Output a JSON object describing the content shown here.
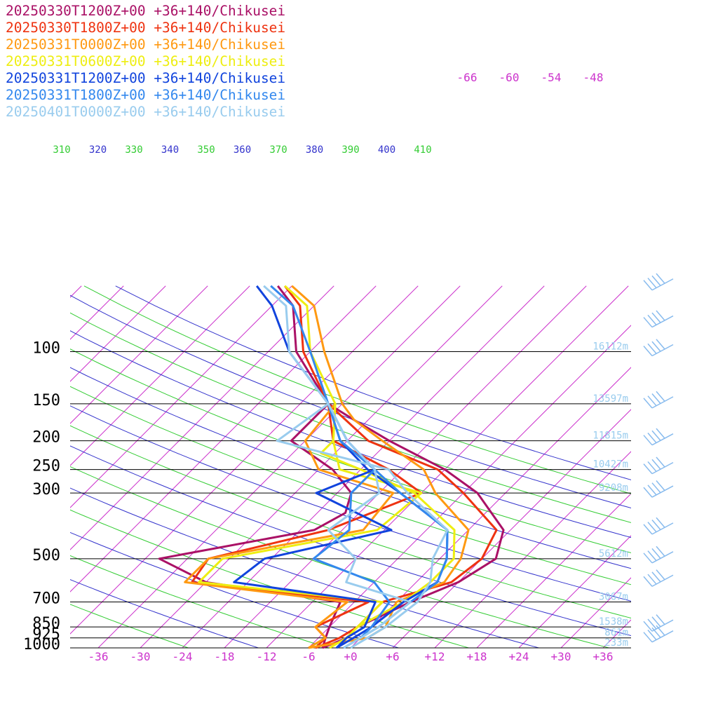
{
  "chart_data": {
    "type": "skew-t log-p sounding",
    "y_axis": {
      "unit": "hPa",
      "scale": "log",
      "levels": [
        100,
        150,
        200,
        250,
        300,
        500,
        700,
        850,
        925,
        1000
      ],
      "tick_labels": [
        "100",
        "150",
        "200",
        "250",
        "300",
        "500",
        "700",
        "850",
        "925",
        "1000"
      ]
    },
    "x_axis": {
      "unit": "°C",
      "range": [
        -40,
        40
      ],
      "ticks": [
        -36,
        -30,
        -24,
        -18,
        -12,
        -6,
        0,
        6,
        12,
        18,
        24,
        30,
        36
      ],
      "tick_labels": [
        "-36",
        "-30",
        "-24",
        "-18",
        "-12",
        "-6",
        "+0",
        "+6",
        "+12",
        "+18",
        "+24",
        "+30",
        "+36"
      ],
      "upper_tick_labels": [
        "-66",
        "-60",
        "-54",
        "-48"
      ]
    },
    "height_labels": [
      {
        "p": 100,
        "text": "16112m"
      },
      {
        "p": 150,
        "text": "13597m"
      },
      {
        "p": 200,
        "text": "11815m"
      },
      {
        "p": 250,
        "text": "10427m"
      },
      {
        "p": 300,
        "text": "9208m"
      },
      {
        "p": 500,
        "text": "5612m"
      },
      {
        "p": 700,
        "text": "3067m"
      },
      {
        "p": 850,
        "text": "1538m"
      },
      {
        "p": 925,
        "text": "861m"
      },
      {
        "p": 1000,
        "text": "233m"
      }
    ],
    "theta_labels": [
      "310",
      "320",
      "330",
      "340",
      "350",
      "360",
      "370",
      "380",
      "390",
      "400",
      "410"
    ],
    "colors": {
      "isotherm": "#cc33cc",
      "theta_blue": "#3333cc",
      "theta_green": "#33cc33",
      "isobar": "#000000",
      "height_label": "#99ccee",
      "wind_barb": "#88bbee"
    },
    "legend": [
      {
        "label": "20250330T1200Z+00 +36+140/Chikusei",
        "color": "#aa1166"
      },
      {
        "label": "20250330T1800Z+00 +36+140/Chikusei",
        "color": "#ee3311"
      },
      {
        "label": "20250331T0000Z+00 +36+140/Chikusei",
        "color": "#ff9911"
      },
      {
        "label": "20250331T0600Z+00 +36+140/Chikusei",
        "color": "#eeee11"
      },
      {
        "label": "20250331T1200Z+00 +36+140/Chikusei",
        "color": "#1144dd"
      },
      {
        "label": "20250331T1800Z+00 +36+140/Chikusei",
        "color": "#3388ee"
      },
      {
        "label": "20250401T0000Z+00 +36+140/Chikusei",
        "color": "#99ccee"
      }
    ],
    "series": [
      {
        "name": "20250330T1200Z+00",
        "color": "#aa1166",
        "temperature": [
          [
            1000,
            -4
          ],
          [
            925,
            -2
          ],
          [
            850,
            -2
          ],
          [
            700,
            2
          ],
          [
            600,
            6
          ],
          [
            500,
            8
          ],
          [
            400,
            5
          ],
          [
            300,
            -4
          ],
          [
            250,
            -12
          ],
          [
            200,
            -24
          ],
          [
            170,
            -32
          ],
          [
            150,
            -38
          ],
          [
            100,
            -50
          ],
          [
            70,
            -57
          ],
          [
            60,
            -62
          ]
        ],
        "dewpoint": [
          [
            1000,
            -4
          ],
          [
            925,
            -5
          ],
          [
            850,
            -6
          ],
          [
            700,
            -8
          ],
          [
            600,
            -30
          ],
          [
            500,
            -40
          ],
          [
            400,
            -22
          ],
          [
            350,
            -20
          ],
          [
            300,
            -22
          ],
          [
            250,
            -28
          ],
          [
            200,
            -38
          ],
          [
            150,
            -38
          ]
        ]
      },
      {
        "name": "20250330T1800Z+00",
        "color": "#ee3311",
        "temperature": [
          [
            1000,
            -5
          ],
          [
            925,
            -3
          ],
          [
            850,
            -2
          ],
          [
            700,
            -2
          ],
          [
            600,
            5
          ],
          [
            500,
            6
          ],
          [
            400,
            4
          ],
          [
            300,
            -6
          ],
          [
            250,
            -13
          ],
          [
            200,
            -27
          ],
          [
            150,
            -38
          ],
          [
            100,
            -49
          ],
          [
            70,
            -56
          ],
          [
            60,
            -61
          ]
        ],
        "dewpoint": [
          [
            1000,
            -5
          ],
          [
            925,
            -5
          ],
          [
            850,
            -8
          ],
          [
            700,
            -4
          ],
          [
            600,
            -32
          ],
          [
            500,
            -33
          ],
          [
            400,
            -20
          ],
          [
            300,
            -12
          ],
          [
            250,
            -20
          ],
          [
            200,
            -32
          ],
          [
            150,
            -38
          ]
        ]
      },
      {
        "name": "20250331T0000Z+00",
        "color": "#ff9911",
        "temperature": [
          [
            1000,
            -6
          ],
          [
            925,
            1
          ],
          [
            850,
            2
          ],
          [
            700,
            0
          ],
          [
            600,
            4
          ],
          [
            500,
            3
          ],
          [
            400,
            0
          ],
          [
            300,
            -10
          ],
          [
            250,
            -15
          ],
          [
            200,
            -25
          ],
          [
            170,
            -32
          ],
          [
            150,
            -36
          ],
          [
            100,
            -46
          ],
          [
            70,
            -54
          ],
          [
            60,
            -60
          ]
        ],
        "dewpoint": [
          [
            1000,
            -6
          ],
          [
            925,
            -5
          ],
          [
            850,
            -8
          ],
          [
            700,
            -7
          ],
          [
            600,
            -33
          ],
          [
            500,
            -33
          ],
          [
            400,
            -15
          ],
          [
            300,
            -16
          ],
          [
            250,
            -30
          ],
          [
            200,
            -36
          ],
          [
            150,
            -37
          ]
        ]
      },
      {
        "name": "20250331T0600Z+00",
        "color": "#eeee11",
        "temperature": [
          [
            1000,
            -3
          ],
          [
            925,
            -2
          ],
          [
            850,
            -2
          ],
          [
            700,
            1
          ],
          [
            600,
            2
          ],
          [
            500,
            2
          ],
          [
            400,
            -2
          ],
          [
            300,
            -13
          ],
          [
            250,
            -24
          ],
          [
            220,
            -32
          ],
          [
            200,
            -32
          ],
          [
            150,
            -37
          ],
          [
            100,
            -48
          ],
          [
            70,
            -55
          ],
          [
            60,
            -61
          ]
        ],
        "dewpoint": [
          [
            1000,
            -3
          ],
          [
            925,
            -2
          ],
          [
            850,
            -2
          ],
          [
            700,
            -2
          ],
          [
            600,
            -31
          ],
          [
            500,
            -31
          ],
          [
            400,
            -13
          ],
          [
            300,
            -12
          ],
          [
            250,
            -27
          ],
          [
            200,
            -32
          ],
          [
            150,
            -37
          ]
        ]
      },
      {
        "name": "20250331T1200Z+00",
        "color": "#1144dd",
        "temperature": [
          [
            1000,
            -2
          ],
          [
            925,
            -1
          ],
          [
            850,
            0
          ],
          [
            700,
            1
          ],
          [
            600,
            3
          ],
          [
            500,
            1
          ],
          [
            400,
            -3
          ],
          [
            300,
            -15
          ],
          [
            250,
            -23
          ],
          [
            200,
            -31
          ],
          [
            150,
            -38
          ],
          [
            100,
            -51
          ],
          [
            70,
            -60
          ],
          [
            60,
            -65
          ]
        ],
        "dewpoint": [
          [
            1000,
            -2
          ],
          [
            925,
            -2
          ],
          [
            850,
            -1
          ],
          [
            700,
            -3
          ],
          [
            600,
            -26
          ],
          [
            500,
            -25
          ],
          [
            400,
            -11
          ],
          [
            300,
            -27
          ],
          [
            250,
            -22
          ],
          [
            200,
            -30
          ],
          [
            150,
            -38
          ]
        ]
      },
      {
        "name": "20250331T1800Z+00",
        "color": "#3388ee",
        "temperature": [
          [
            1000,
            -1
          ],
          [
            925,
            0
          ],
          [
            850,
            1
          ],
          [
            700,
            2
          ],
          [
            600,
            3
          ],
          [
            500,
            1
          ],
          [
            400,
            -3
          ],
          [
            300,
            -15
          ],
          [
            250,
            -22
          ],
          [
            200,
            -31
          ],
          [
            150,
            -38
          ],
          [
            100,
            -48
          ],
          [
            70,
            -57
          ],
          [
            60,
            -63
          ]
        ],
        "dewpoint": [
          [
            1000,
            -1
          ],
          [
            925,
            0
          ],
          [
            850,
            0
          ],
          [
            700,
            -1
          ],
          [
            600,
            -6
          ],
          [
            500,
            -18
          ],
          [
            400,
            -17
          ],
          [
            300,
            -22
          ],
          [
            250,
            -22
          ],
          [
            200,
            -30
          ],
          [
            150,
            -38
          ]
        ]
      },
      {
        "name": "20250401T0000Z+00",
        "color": "#99ccee",
        "temperature": [
          [
            1000,
            0
          ],
          [
            925,
            1
          ],
          [
            850,
            2
          ],
          [
            700,
            3
          ],
          [
            600,
            2
          ],
          [
            500,
            -1
          ],
          [
            400,
            -3
          ],
          [
            300,
            -14
          ],
          [
            250,
            -20
          ],
          [
            200,
            -40
          ],
          [
            150,
            -38
          ],
          [
            100,
            -51
          ],
          [
            70,
            -58
          ],
          [
            60,
            -64
          ]
        ],
        "dewpoint": [
          [
            1000,
            -1
          ],
          [
            925,
            0
          ],
          [
            850,
            1
          ],
          [
            700,
            2
          ],
          [
            600,
            -10
          ],
          [
            500,
            -12
          ],
          [
            400,
            -20
          ],
          [
            300,
            -18
          ],
          [
            250,
            -22
          ],
          [
            200,
            -30
          ],
          [
            150,
            -38
          ]
        ]
      }
    ],
    "wind_barbs_hPa": [
      60,
      80,
      100,
      150,
      200,
      250,
      300,
      400,
      500,
      600,
      850,
      925
    ]
  }
}
